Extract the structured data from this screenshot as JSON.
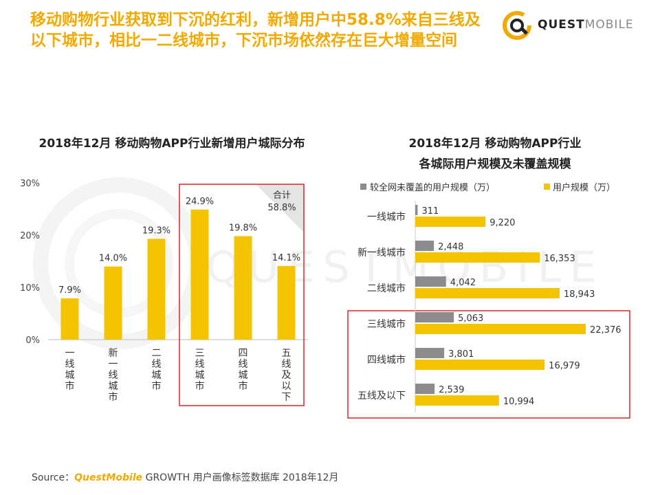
{
  "headline": {
    "line1": "移动购物行业获取到下沉的红利，新增用户中58.8%来自三线及",
    "line2": "以下城市，相比一二线城市，下沉市场依然存在巨大增量空间"
  },
  "logo": {
    "quest": "QUEST",
    "mobile": "MOBILE"
  },
  "watermark": "QUESTMOBILE",
  "source": {
    "label": "Source：",
    "brand": "QuestMobile",
    "rest": " GROWTH 用户画像标签数据库 2018年12月"
  },
  "colors": {
    "accent": "#f2a900",
    "bar": "#f5c400",
    "gray_bar": "#8c8c8c",
    "highlight_box": "#d9252a"
  },
  "chart_data": [
    {
      "type": "bar",
      "title": "2018年12月 移动购物APP行业新增用户城际分布",
      "categories": [
        "一线城市",
        "新一线城市",
        "二线城市",
        "三线城市",
        "四线城市",
        "五线及以下"
      ],
      "values": [
        7.9,
        14.0,
        19.3,
        24.9,
        19.8,
        14.1
      ],
      "value_labels": [
        "7.9%",
        "14.0%",
        "19.3%",
        "24.9%",
        "19.8%",
        "14.1%"
      ],
      "ylim": [
        0,
        30
      ],
      "yticks": [
        "0%",
        "10%",
        "20%",
        "30%"
      ],
      "annotation": {
        "line1": "合计",
        "line2": "58.8%"
      },
      "highlight_categories": [
        "三线城市",
        "四线城市",
        "五线及以下"
      ]
    },
    {
      "type": "bar",
      "orientation": "horizontal",
      "title_line1": "2018年12月 移动购物APP行业",
      "title_line2": "各城际用户规模及未覆盖规模",
      "categories": [
        "一线城市",
        "新一线城市",
        "二线城市",
        "三线城市",
        "四线城市",
        "五线及以下"
      ],
      "series": [
        {
          "name": "较全网未覆盖的用户规模（万）",
          "values": [
            311,
            2448,
            4042,
            5063,
            3801,
            2539
          ],
          "labels": [
            "311",
            "2,448",
            "4,042",
            "5,063",
            "3,801",
            "2,539"
          ]
        },
        {
          "name": "用户规模（万）",
          "values": [
            9220,
            16353,
            18943,
            22376,
            16979,
            10994
          ],
          "labels": [
            "9,220",
            "16,353",
            "18,943",
            "22,376",
            "16,979",
            "10,994"
          ]
        }
      ],
      "xlim": [
        0,
        22376
      ],
      "highlight_categories": [
        "三线城市",
        "四线城市",
        "五线及以下"
      ]
    }
  ]
}
